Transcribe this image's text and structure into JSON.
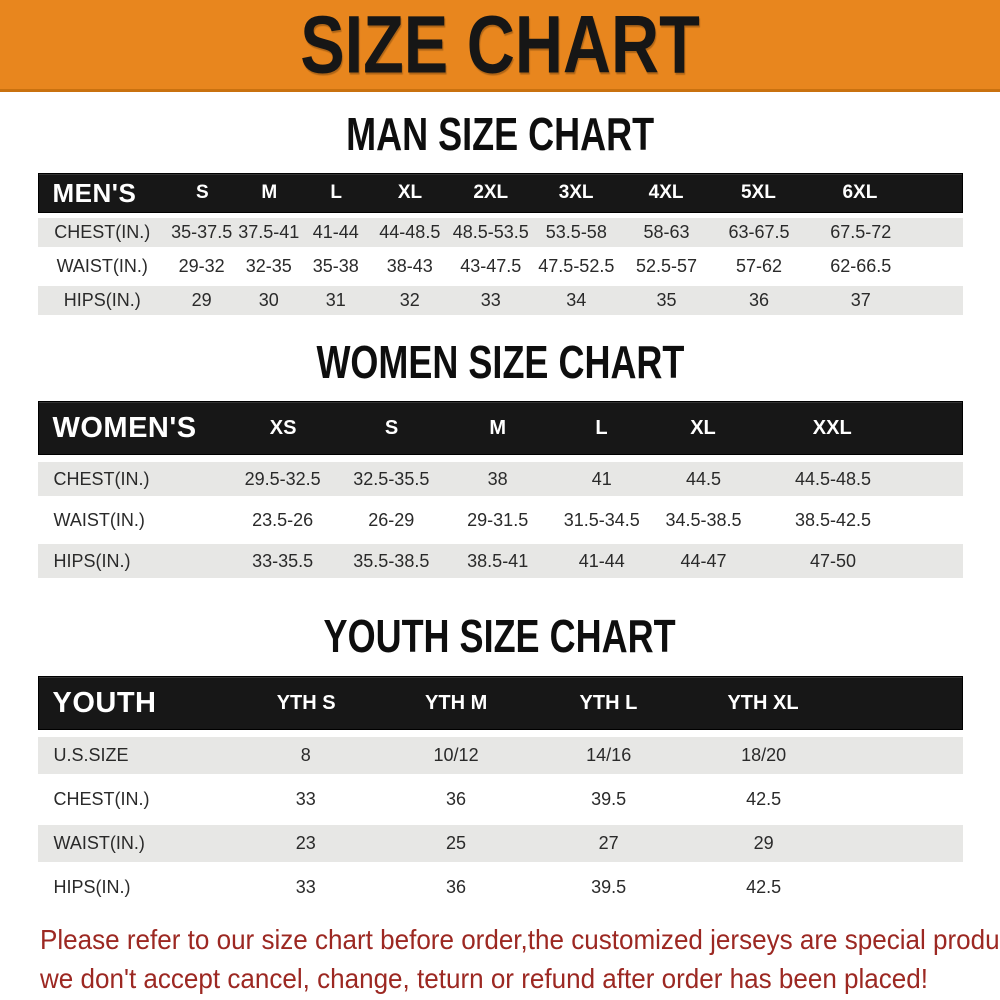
{
  "banner": {
    "title": "SIZE CHART"
  },
  "sections": {
    "men": {
      "title": "MAN SIZE CHART",
      "header": [
        "MEN'S",
        "S",
        "M",
        "L",
        "XL",
        "2XL",
        "3XL",
        "4XL",
        "5XL",
        "6XL"
      ],
      "rows": [
        {
          "label": "CHEST(IN.)",
          "values": [
            "35-37.5",
            "37.5-41",
            "41-44",
            "44-48.5",
            "48.5-53.5",
            "53.5-58",
            "58-63",
            "63-67.5",
            "67.5-72"
          ]
        },
        {
          "label": "WAIST(IN.)",
          "values": [
            "29-32",
            "32-35",
            "35-38",
            "38-43",
            "43-47.5",
            "47.5-52.5",
            "52.5-57",
            "57-62",
            "62-66.5"
          ]
        },
        {
          "label": "HIPS(IN.)",
          "values": [
            "29",
            "30",
            "31",
            "32",
            "33",
            "34",
            "35",
            "36",
            "37"
          ]
        }
      ]
    },
    "women": {
      "title": "WOMEN SIZE CHART",
      "header": [
        "WOMEN'S",
        "XS",
        "S",
        "M",
        "L",
        "XL",
        "XXL"
      ],
      "rows": [
        {
          "label": "CHEST(IN.)",
          "values": [
            "29.5-32.5",
            "32.5-35.5",
            "38",
            "41",
            "44.5",
            "44.5-48.5"
          ]
        },
        {
          "label": "WAIST(IN.)",
          "values": [
            "23.5-26",
            "26-29",
            "29-31.5",
            "31.5-34.5",
            "34.5-38.5",
            "38.5-42.5"
          ]
        },
        {
          "label": "HIPS(IN.)",
          "values": [
            "33-35.5",
            "35.5-38.5",
            "38.5-41",
            "41-44",
            "44-47",
            "47-50"
          ]
        }
      ]
    },
    "youth": {
      "title": "YOUTH SIZE CHART",
      "header": [
        "YOUTH",
        "YTH S",
        "YTH M",
        "YTH L",
        "YTH XL"
      ],
      "rows": [
        {
          "label": "U.S.SIZE",
          "values": [
            "8",
            "10/12",
            "14/16",
            "18/20"
          ]
        },
        {
          "label": "CHEST(IN.)",
          "values": [
            "33",
            "36",
            "39.5",
            "42.5"
          ]
        },
        {
          "label": "WAIST(IN.)",
          "values": [
            "23",
            "25",
            "27",
            "29"
          ]
        },
        {
          "label": "HIPS(IN.)",
          "values": [
            "33",
            "36",
            "39.5",
            "42.5"
          ]
        }
      ]
    }
  },
  "note": {
    "lines": [
      "Please refer to our size chart before order,the customized jerseys are special products,",
      "we don't accept cancel, change, teturn or refund after order has been placed!"
    ]
  },
  "colors": {
    "banner_bg": "#E8861E",
    "table_header_bg": "#171717",
    "row_alt_bg": "#E7E7E5",
    "note_text": "#9C2822"
  }
}
